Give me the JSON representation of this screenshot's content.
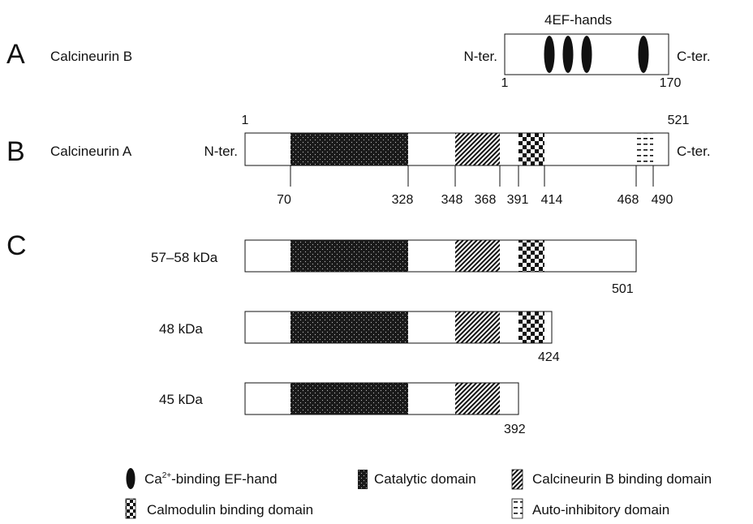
{
  "panel_a": {
    "letter": "A",
    "name": "Calcineurin B",
    "n_term": "N-ter.",
    "c_term": "C-ter.",
    "title": "4EF-hands",
    "start": "1",
    "end": "170",
    "ef_hand_count": 4
  },
  "panel_b": {
    "letter": "B",
    "name": "Calcineurin A",
    "n_term": "N-ter.",
    "c_term": "C-ter.",
    "start": "1",
    "end": "521",
    "positions": [
      "70",
      "328",
      "348",
      "368",
      "391",
      "414",
      "468",
      "490"
    ]
  },
  "panel_c": {
    "letter": "C",
    "isoforms": [
      {
        "label": "57–58 kDa",
        "end": "501"
      },
      {
        "label": "48 kDa",
        "end": "424"
      },
      {
        "label": "45 kDa",
        "end": "392"
      }
    ]
  },
  "legend": {
    "ef_hand": "Ca",
    "ef_hand_sup": "2+",
    "ef_hand_rest": "-binding EF-hand",
    "catalytic": "Catalytic domain",
    "cnb_binding": "Calcineurin B binding domain",
    "calmodulin": "Calmodulin binding domain",
    "autoinhibitory": "Auto-inhibitory domain"
  },
  "colors": {
    "line": "#111111",
    "catalytic_fill": "#1a1a1a",
    "box_fill": "#ffffff"
  }
}
